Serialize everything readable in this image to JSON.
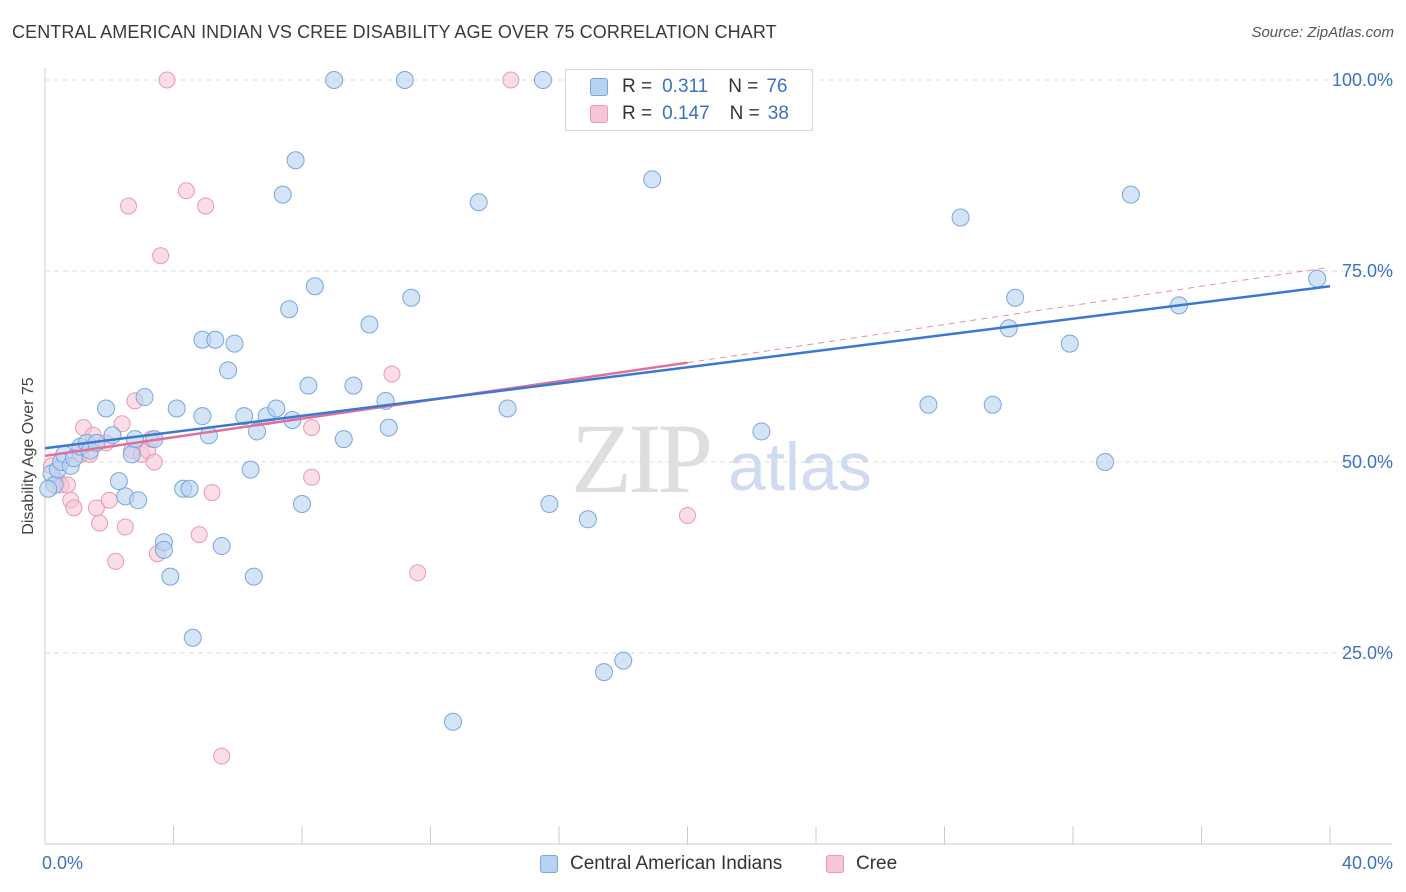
{
  "title": "CENTRAL AMERICAN INDIAN VS CREE DISABILITY AGE OVER 75 CORRELATION CHART",
  "source": "Source: ZipAtlas.com",
  "watermark": {
    "zip": "ZIP",
    "atlas": "atlas"
  },
  "colors": {
    "blue_fill": "#b8d2f2",
    "blue_stroke": "#7aa6dc",
    "blue_line": "#3b78d0",
    "pink_fill": "#f7c6d6",
    "pink_stroke": "#e79ab3",
    "pink_line": "#e0709a",
    "axis_label": "#3b72c4",
    "grid": "#dcdcdc"
  },
  "legend_top": {
    "rows": [
      {
        "r_label": "R =",
        "r_value": "0.311",
        "n_label": "N =",
        "n_value": "76"
      },
      {
        "r_label": "R =",
        "r_value": "0.147",
        "n_label": "N =",
        "n_value": "38"
      }
    ]
  },
  "legend_bottom": {
    "series1": "Central American Indians",
    "series2": "Cree"
  },
  "chart_data": {
    "type": "scatter",
    "title": "CENTRAL AMERICAN INDIAN VS CREE DISABILITY AGE OVER 75 CORRELATION CHART",
    "xlabel": "",
    "ylabel": "Disability Age Over 75",
    "xlim": [
      0,
      40
    ],
    "ylim": [
      0,
      105
    ],
    "x_tick_labels": [
      "0.0%",
      "40.0%"
    ],
    "y_tick_labels": [
      "25.0%",
      "50.0%",
      "75.0%",
      "100.0%"
    ],
    "y_ticks": [
      25,
      50,
      75,
      100
    ],
    "series": [
      {
        "name": "Central American Indians",
        "r": 0.311,
        "n": 76,
        "trend": {
          "x0": 0,
          "y0": 51.8,
          "x1": 40,
          "y1": 73.0
        },
        "points": [
          [
            0.2,
            48.5
          ],
          [
            0.3,
            47.0
          ],
          [
            0.4,
            49.0
          ],
          [
            0.5,
            50.0
          ],
          [
            0.6,
            51.0
          ],
          [
            0.8,
            49.5
          ],
          [
            0.9,
            50.5
          ],
          [
            1.1,
            52.0
          ],
          [
            1.3,
            52.5
          ],
          [
            1.4,
            51.5
          ],
          [
            1.6,
            52.5
          ],
          [
            1.9,
            57.0
          ],
          [
            2.1,
            53.5
          ],
          [
            2.3,
            47.5
          ],
          [
            2.5,
            45.5
          ],
          [
            2.7,
            51.0
          ],
          [
            2.8,
            53.0
          ],
          [
            2.9,
            45.0
          ],
          [
            3.1,
            58.5
          ],
          [
            3.4,
            53.0
          ],
          [
            3.7,
            39.5
          ],
          [
            3.7,
            38.5
          ],
          [
            3.9,
            35.0
          ],
          [
            4.1,
            57.0
          ],
          [
            4.3,
            46.5
          ],
          [
            4.5,
            46.5
          ],
          [
            4.6,
            27.0
          ],
          [
            4.9,
            56.0
          ],
          [
            5.1,
            53.5
          ],
          [
            4.9,
            66.0
          ],
          [
            5.3,
            66.0
          ],
          [
            5.5,
            39.0
          ],
          [
            5.7,
            62.0
          ],
          [
            5.9,
            65.5
          ],
          [
            6.2,
            56.0
          ],
          [
            6.4,
            49.0
          ],
          [
            6.5,
            35.0
          ],
          [
            6.6,
            54.0
          ],
          [
            6.9,
            56.0
          ],
          [
            7.2,
            57.0
          ],
          [
            7.4,
            85.0
          ],
          [
            7.6,
            70.0
          ],
          [
            7.7,
            55.5
          ],
          [
            7.8,
            89.5
          ],
          [
            8.0,
            44.5
          ],
          [
            8.2,
            60.0
          ],
          [
            8.4,
            73.0
          ],
          [
            9.0,
            100.0
          ],
          [
            9.3,
            53.0
          ],
          [
            9.6,
            60.0
          ],
          [
            10.1,
            68.0
          ],
          [
            10.6,
            58.0
          ],
          [
            10.7,
            54.5
          ],
          [
            11.2,
            100.0
          ],
          [
            11.4,
            71.5
          ],
          [
            13.5,
            84.0
          ],
          [
            14.4,
            57.0
          ],
          [
            15.5,
            100.0
          ],
          [
            15.7,
            44.5
          ],
          [
            16.9,
            42.5
          ],
          [
            17.4,
            22.5
          ],
          [
            18.0,
            24.0
          ],
          [
            18.9,
            87.0
          ],
          [
            12.7,
            16.0
          ],
          [
            22.3,
            54.0
          ],
          [
            27.5,
            57.5
          ],
          [
            28.5,
            82.0
          ],
          [
            29.5,
            57.5
          ],
          [
            30.0,
            67.5
          ],
          [
            30.2,
            71.5
          ],
          [
            31.9,
            65.5
          ],
          [
            33.0,
            50.0
          ],
          [
            33.8,
            85.0
          ],
          [
            35.3,
            70.5
          ],
          [
            39.6,
            74.0
          ],
          [
            0.1,
            46.5
          ]
        ]
      },
      {
        "name": "Cree",
        "r": 0.147,
        "n": 38,
        "trend": {
          "x0": 0,
          "y0": 50.8,
          "x1": 20,
          "y1": 63.0,
          "dashed_to": {
            "x": 40,
            "y": 75.5
          }
        },
        "points": [
          [
            0.2,
            49.5
          ],
          [
            0.4,
            47.5
          ],
          [
            0.5,
            47.0
          ],
          [
            0.7,
            47.0
          ],
          [
            0.8,
            45.0
          ],
          [
            0.9,
            44.0
          ],
          [
            1.1,
            51.0
          ],
          [
            1.2,
            54.5
          ],
          [
            1.4,
            51.0
          ],
          [
            1.5,
            53.5
          ],
          [
            1.6,
            44.0
          ],
          [
            1.7,
            42.0
          ],
          [
            1.9,
            52.5
          ],
          [
            2.0,
            45.0
          ],
          [
            2.2,
            37.0
          ],
          [
            2.4,
            55.0
          ],
          [
            2.5,
            41.5
          ],
          [
            2.6,
            83.5
          ],
          [
            2.7,
            51.5
          ],
          [
            2.8,
            58.0
          ],
          [
            3.0,
            51.0
          ],
          [
            3.2,
            51.5
          ],
          [
            3.3,
            53.0
          ],
          [
            3.4,
            50.0
          ],
          [
            3.5,
            38.0
          ],
          [
            3.6,
            77.0
          ],
          [
            3.8,
            100.0
          ],
          [
            4.4,
            85.5
          ],
          [
            4.8,
            40.5
          ],
          [
            5.0,
            83.5
          ],
          [
            5.2,
            46.0
          ],
          [
            5.5,
            11.5
          ],
          [
            8.3,
            54.5
          ],
          [
            8.3,
            48.0
          ],
          [
            10.8,
            61.5
          ],
          [
            11.6,
            35.5
          ],
          [
            14.5,
            100.0
          ],
          [
            20.0,
            43.0
          ]
        ]
      }
    ]
  }
}
